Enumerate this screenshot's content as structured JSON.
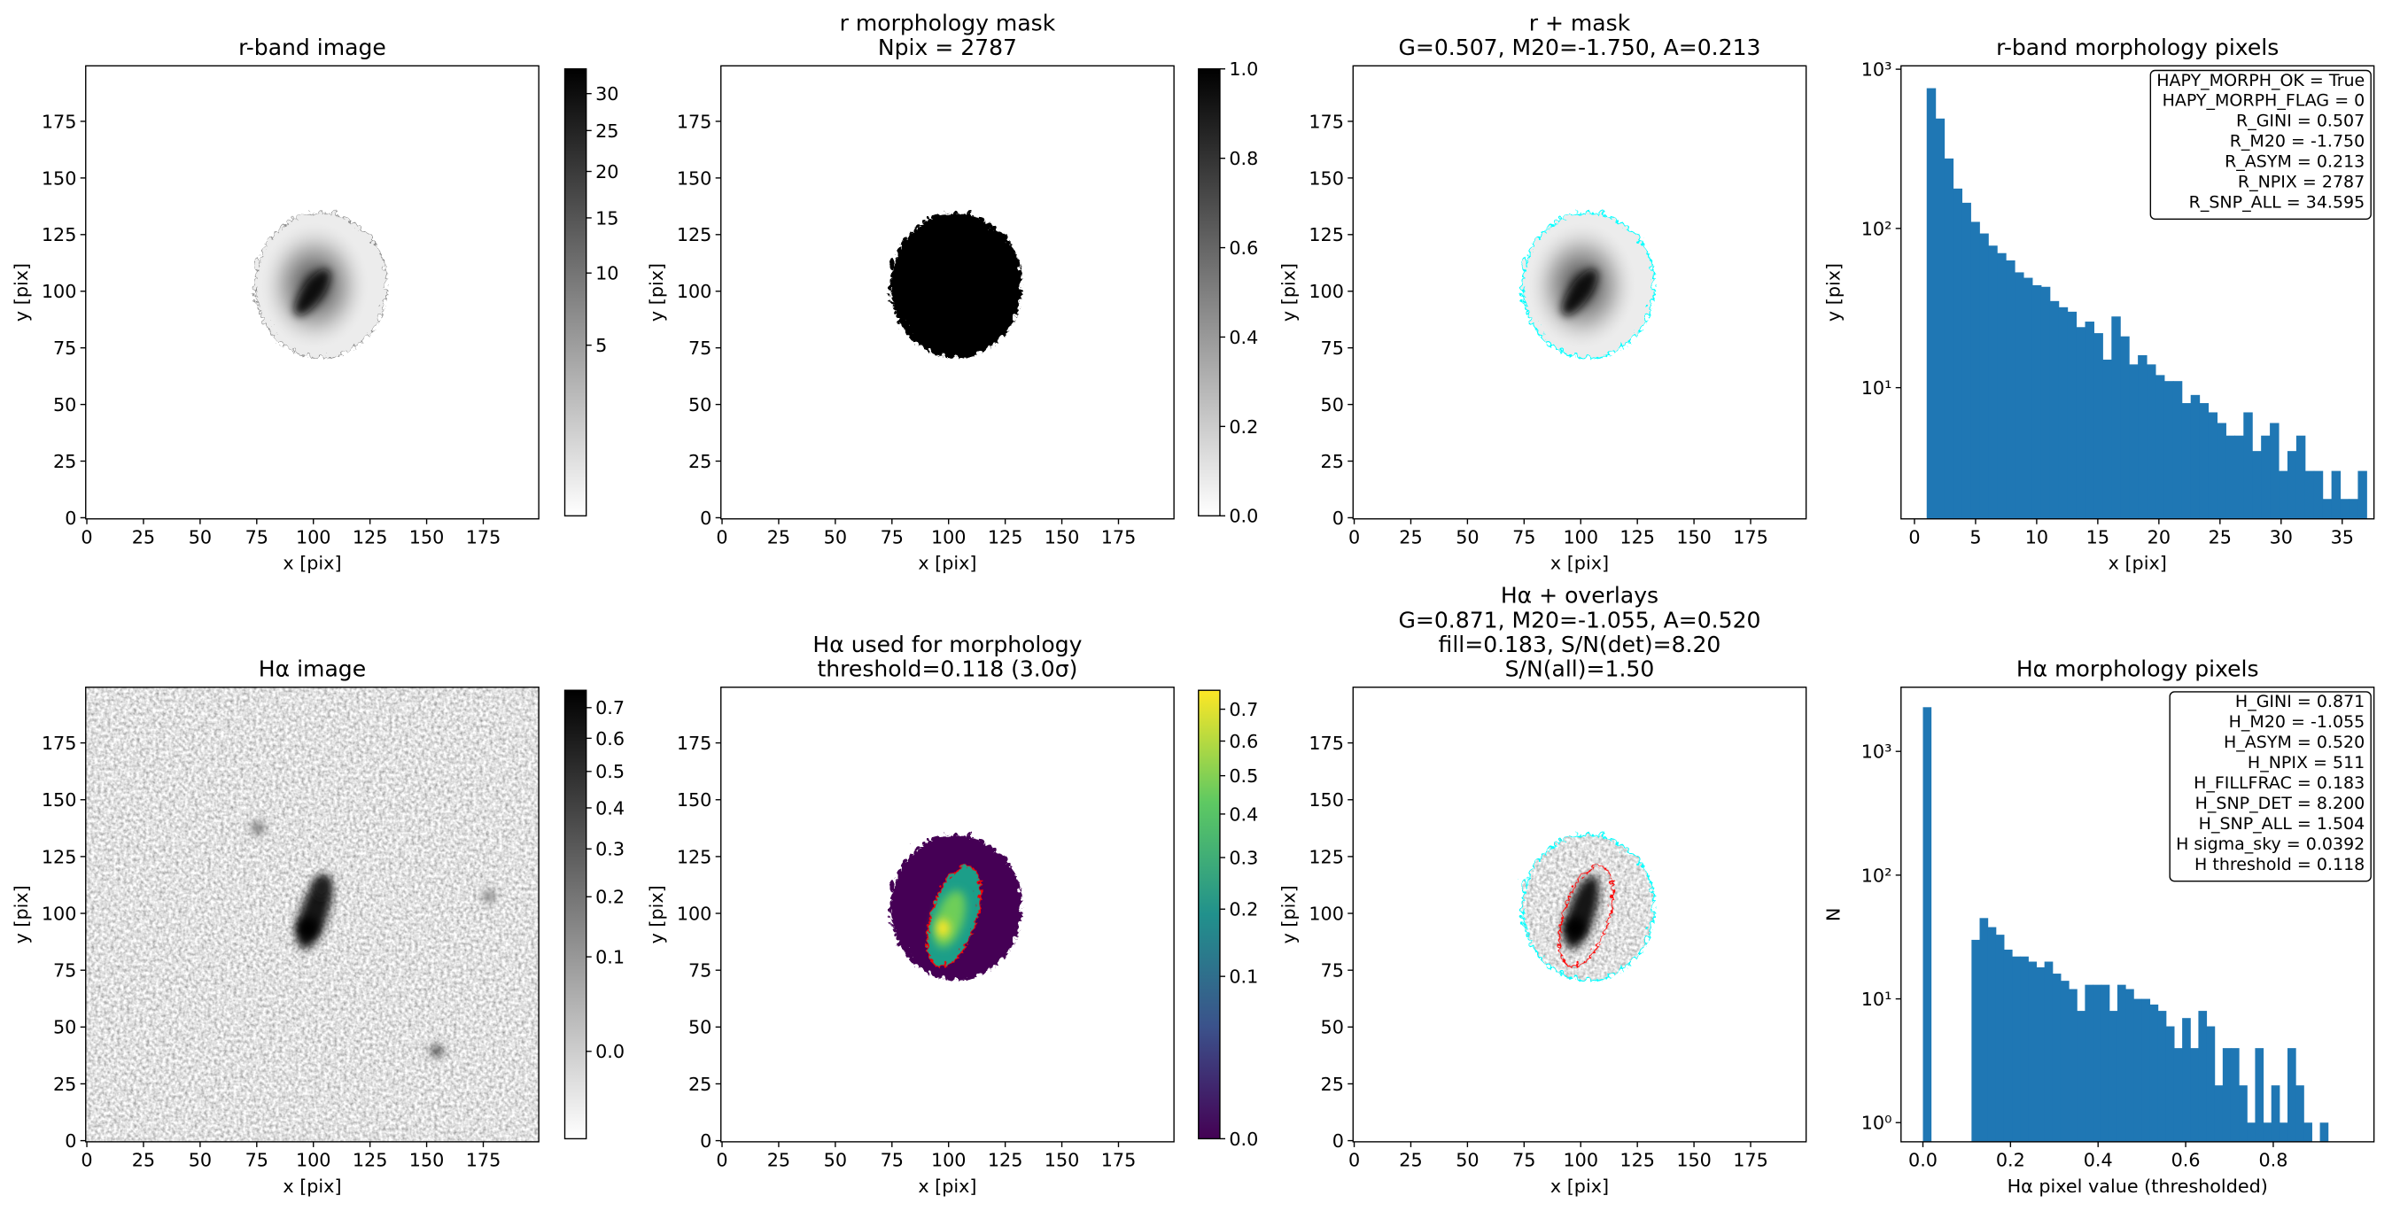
{
  "chart_data": [
    {
      "type": "image",
      "title": [
        "r-band image"
      ],
      "xlabel": "x [pix]",
      "ylabel": "y [pix]",
      "xlim": [
        -0.5,
        199.5
      ],
      "ylim": [
        -0.5,
        199.5
      ],
      "xticks": [
        0,
        25,
        50,
        75,
        100,
        125,
        150,
        175
      ],
      "yticks": [
        0,
        25,
        50,
        75,
        100,
        125,
        150,
        175
      ],
      "cmap": "Greys",
      "colorbar": {
        "scale": "sqrt",
        "clim": [
          0.12,
          33.6
        ],
        "ticks": [
          5,
          10,
          15,
          20,
          25,
          30
        ]
      }
    },
    {
      "type": "image",
      "title": [
        "r morphology mask",
        "Npix = 2787"
      ],
      "xlabel": "x [pix]",
      "ylabel": "y [pix]",
      "xlim": [
        -0.5,
        199.5
      ],
      "ylim": [
        -0.5,
        199.5
      ],
      "xticks": [
        0,
        25,
        50,
        75,
        100,
        125,
        150,
        175
      ],
      "yticks": [
        0,
        25,
        50,
        75,
        100,
        125,
        150,
        175
      ],
      "cmap": "Greys",
      "colorbar": {
        "scale": "linear",
        "clim": [
          0,
          1
        ],
        "ticks": [
          {
            "value": 0,
            "label": "0.0"
          },
          0.2,
          0.4,
          0.6,
          0.8,
          {
            "value": 1,
            "label": "1.0"
          }
        ]
      }
    },
    {
      "type": "image",
      "title": [
        "r + mask",
        "G=0.507, M20=-1.750, A=0.213"
      ],
      "xlabel": "x [pix]",
      "ylabel": "y [pix]",
      "xlim": [
        -0.5,
        199.5
      ],
      "ylim": [
        -0.5,
        199.5
      ],
      "xticks": [
        0,
        25,
        50,
        75,
        100,
        125,
        150,
        175
      ],
      "yticks": [
        0,
        25,
        50,
        75,
        100,
        125,
        150,
        175
      ],
      "cmap": "Greys",
      "contour_colors": [
        "cyan"
      ]
    },
    {
      "type": "histogram",
      "title": [
        "r-band morphology pixels"
      ],
      "xlabel": "x [pix]",
      "ylabel": "y [pix]",
      "color": "#1f77b4",
      "log_y": true,
      "bins": [
        1,
        1.72,
        2.44,
        3.16,
        3.88,
        4.6,
        5.32,
        6.04,
        6.76,
        7.48,
        8.2,
        8.92,
        9.64,
        10.36,
        11.08,
        11.8,
        12.52,
        13.24,
        13.96,
        14.68,
        15.4,
        16.12,
        16.84,
        17.56,
        18.28,
        19,
        19.72,
        20.44,
        21.16,
        21.88,
        22.6,
        23.32,
        24.04,
        24.76,
        25.48,
        26.2,
        26.92,
        27.64,
        28.36,
        29.08,
        29.8,
        30.52,
        31.24,
        31.96,
        32.68,
        33.4,
        34.12,
        34.84,
        35.56,
        36.28,
        37
      ],
      "values": [
        760,
        490,
        275,
        178,
        145,
        110,
        93,
        78,
        70,
        63,
        53,
        49,
        44,
        43,
        35,
        32,
        30,
        24,
        26,
        22,
        15,
        28,
        21,
        14,
        16,
        14,
        12,
        11,
        11,
        8,
        9,
        8,
        7,
        6,
        5,
        5,
        7,
        4,
        5,
        6,
        3,
        4,
        5,
        3,
        3,
        2,
        3,
        2,
        2,
        3
      ],
      "xlim": [
        -1.1,
        37.6
      ],
      "ylim": [
        1.5,
        1050
      ],
      "xticks": [
        0,
        5,
        10,
        15,
        20,
        25,
        30,
        35
      ],
      "yticks": [
        {
          "value": 10,
          "label": "10¹"
        },
        {
          "value": 100,
          "label": "10²"
        },
        {
          "value": 1000,
          "label": "10³"
        }
      ],
      "annotation": [
        "HAPY_MORPH_OK = True",
        "HAPY_MORPH_FLAG = 0",
        "R_GINI = 0.507",
        "R_M20 = -1.750",
        "R_ASYM = 0.213",
        "R_NPIX = 2787",
        "R_SNP_ALL = 34.595"
      ]
    },
    {
      "type": "image",
      "title": [
        "Hα image"
      ],
      "xlabel": "x [pix]",
      "ylabel": "y [pix]",
      "xlim": [
        -0.5,
        199.5
      ],
      "ylim": [
        -0.5,
        199.5
      ],
      "xticks": [
        0,
        25,
        50,
        75,
        100,
        125,
        150,
        175
      ],
      "yticks": [
        0,
        25,
        50,
        75,
        100,
        125,
        150,
        175
      ],
      "cmap": "Greys",
      "colorbar": {
        "scale": "sqrt",
        "clim": [
          -0.03,
          0.76
        ],
        "ticks": [
          {
            "value": 0,
            "label": "0.0"
          },
          0.1,
          0.2,
          0.3,
          0.4,
          0.5,
          0.6,
          0.7
        ]
      }
    },
    {
      "type": "image",
      "title": [
        "Hα used for morphology",
        "threshold=0.118 (3.0σ)"
      ],
      "xlabel": "x [pix]",
      "ylabel": "y [pix]",
      "xlim": [
        -0.5,
        199.5
      ],
      "ylim": [
        -0.5,
        199.5
      ],
      "xticks": [
        0,
        25,
        50,
        75,
        100,
        125,
        150,
        175
      ],
      "yticks": [
        0,
        25,
        50,
        75,
        100,
        125,
        150,
        175
      ],
      "cmap": "viridis",
      "contour_colors": [
        "red"
      ],
      "colorbar": {
        "scale": "sqrt",
        "clim": [
          0,
          0.763
        ],
        "ticks": [
          {
            "value": 0,
            "label": "0.0"
          },
          0.1,
          0.2,
          0.3,
          0.4,
          0.5,
          0.6,
          0.7
        ]
      }
    },
    {
      "type": "image",
      "title": [
        "Hα + overlays",
        "G=0.871, M20=-1.055, A=0.520",
        "fill=0.183, S/N(det)=8.20",
        "S/N(all)=1.50"
      ],
      "xlabel": "x [pix]",
      "ylabel": "y [pix]",
      "xlim": [
        -0.5,
        199.5
      ],
      "ylim": [
        -0.5,
        199.5
      ],
      "xticks": [
        0,
        25,
        50,
        75,
        100,
        125,
        150,
        175
      ],
      "yticks": [
        0,
        25,
        50,
        75,
        100,
        125,
        150,
        175
      ],
      "cmap": "Greys",
      "contour_colors": [
        "cyan",
        "red"
      ]
    },
    {
      "type": "histogram",
      "title": [
        "Hα morphology pixels"
      ],
      "xlabel": "Hα pixel value (thresholded)",
      "ylabel": "N",
      "color": "#1f77b4",
      "log_y": true,
      "bins": [
        0,
        0.0185,
        0.037,
        0.0555,
        0.074,
        0.0925,
        0.111,
        0.1295,
        0.148,
        0.1665,
        0.185,
        0.2035,
        0.222,
        0.2405,
        0.259,
        0.2775,
        0.296,
        0.3145,
        0.333,
        0.3515,
        0.37,
        0.3885,
        0.407,
        0.4255,
        0.444,
        0.4625,
        0.481,
        0.4995,
        0.518,
        0.5365,
        0.555,
        0.5735,
        0.592,
        0.6105,
        0.629,
        0.6475,
        0.666,
        0.6845,
        0.703,
        0.7215,
        0.74,
        0.7585,
        0.777,
        0.7955,
        0.814,
        0.8325,
        0.851,
        0.8695,
        0.888,
        0.9065,
        0.925
      ],
      "values": [
        2276,
        0,
        0,
        0,
        0,
        0,
        30,
        45,
        38,
        33,
        25,
        22,
        22,
        20,
        18,
        20,
        16,
        14,
        12,
        8,
        13,
        13,
        13,
        8,
        13,
        12,
        10,
        10,
        9,
        8,
        6,
        4,
        7,
        4,
        8,
        6,
        2,
        4,
        4,
        2,
        1,
        4,
        1,
        2,
        1,
        4,
        2,
        1,
        0,
        1
      ],
      "xlim": [
        -0.05,
        1.03
      ],
      "ylim": [
        0.7,
        3300
      ],
      "xticks": [
        {
          "value": 0,
          "label": "0.0"
        },
        0.2,
        0.4,
        0.6,
        0.8
      ],
      "yticks": [
        {
          "value": 1,
          "label": "10⁰"
        },
        {
          "value": 10,
          "label": "10¹"
        },
        {
          "value": 100,
          "label": "10²"
        },
        {
          "value": 1000,
          "label": "10³"
        }
      ],
      "annotation": [
        "H_GINI = 0.871",
        "H_M20 = -1.055",
        "H_ASYM = 0.520",
        "H_NPIX = 511",
        "H_FILLFRAC = 0.183",
        "H_SNP_DET = 8.200",
        "H_SNP_ALL = 1.504",
        "H sigma_sky = 0.0392",
        "H threshold = 0.118"
      ]
    }
  ]
}
